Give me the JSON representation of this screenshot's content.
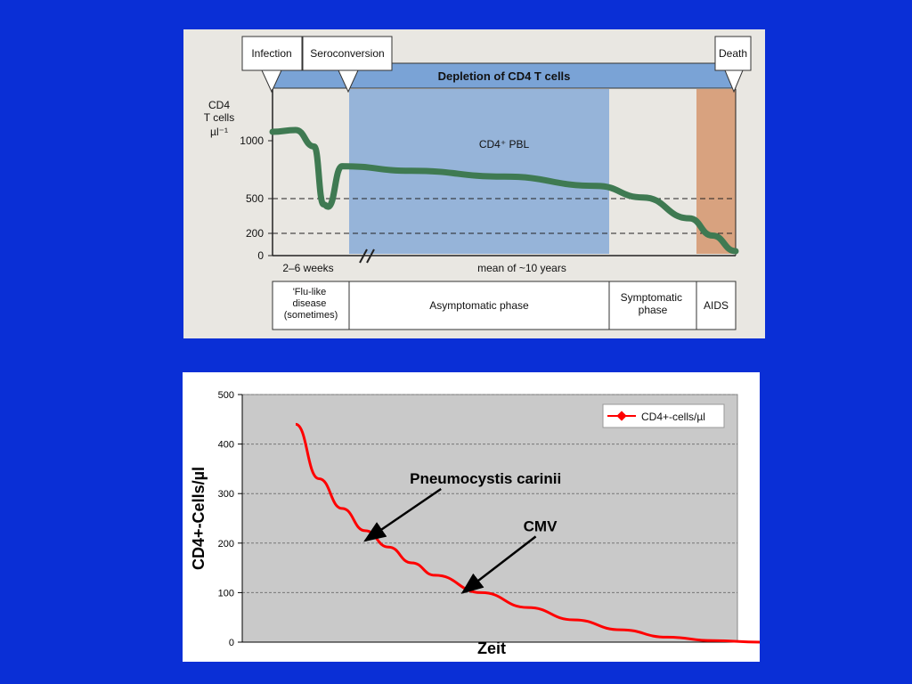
{
  "chart_data": [
    {
      "type": "line",
      "ylabel": [
        "CD4",
        "T cells",
        "µl⁻¹"
      ],
      "yticks": [
        0,
        200,
        500,
        1000
      ],
      "dashed_levels": [
        200,
        500
      ],
      "events": [
        "Infection",
        "Seroconversion",
        "Death"
      ],
      "banner": "Depletion of CD4 T cells",
      "region_label": "CD4⁺ PBL",
      "time_labels": [
        "2–6 weeks",
        "mean of ~10 years"
      ],
      "phases": [
        "'Flu-like disease (sometimes)",
        "Asymptomatic phase",
        "Symptomatic phase",
        "AIDS"
      ],
      "x": [
        0.0,
        0.05,
        0.09,
        0.11,
        0.12,
        0.15,
        0.3,
        0.5,
        0.7,
        0.8,
        0.9,
        0.95,
        1.0
      ],
      "y": [
        1100,
        1120,
        950,
        450,
        430,
        780,
        740,
        690,
        610,
        510,
        330,
        180,
        40
      ],
      "colors": {
        "curve": "#3f7a52",
        "band": "#7aa3d6",
        "aids": "#d8a27f"
      }
    },
    {
      "type": "line",
      "ylabel": "CD4+-Cells/µl",
      "xlabel": "Zeit",
      "ylim": [
        0,
        500
      ],
      "yticks": [
        0,
        100,
        200,
        300,
        400,
        500
      ],
      "grid": true,
      "legend": {
        "label": "CD4+-cells/µl",
        "position": "top-right"
      },
      "series": [
        {
          "name": "CD4+-cells/µl",
          "x": [
            0,
            0.05,
            0.1,
            0.15,
            0.2,
            0.25,
            0.3,
            0.4,
            0.5,
            0.6,
            0.7,
            0.8,
            0.9,
            1.0
          ],
          "y": [
            440,
            330,
            270,
            225,
            192,
            160,
            135,
            100,
            70,
            45,
            25,
            10,
            3,
            0
          ]
        }
      ],
      "annotations": [
        {
          "text": "Pneumocystis carinii",
          "point_x": 0.15,
          "point_y": 205
        },
        {
          "text": "CMV",
          "point_x": 0.36,
          "point_y": 100
        }
      ],
      "colors": {
        "line": "#ff0000",
        "plot_bg": "#c9c9c9"
      }
    }
  ]
}
